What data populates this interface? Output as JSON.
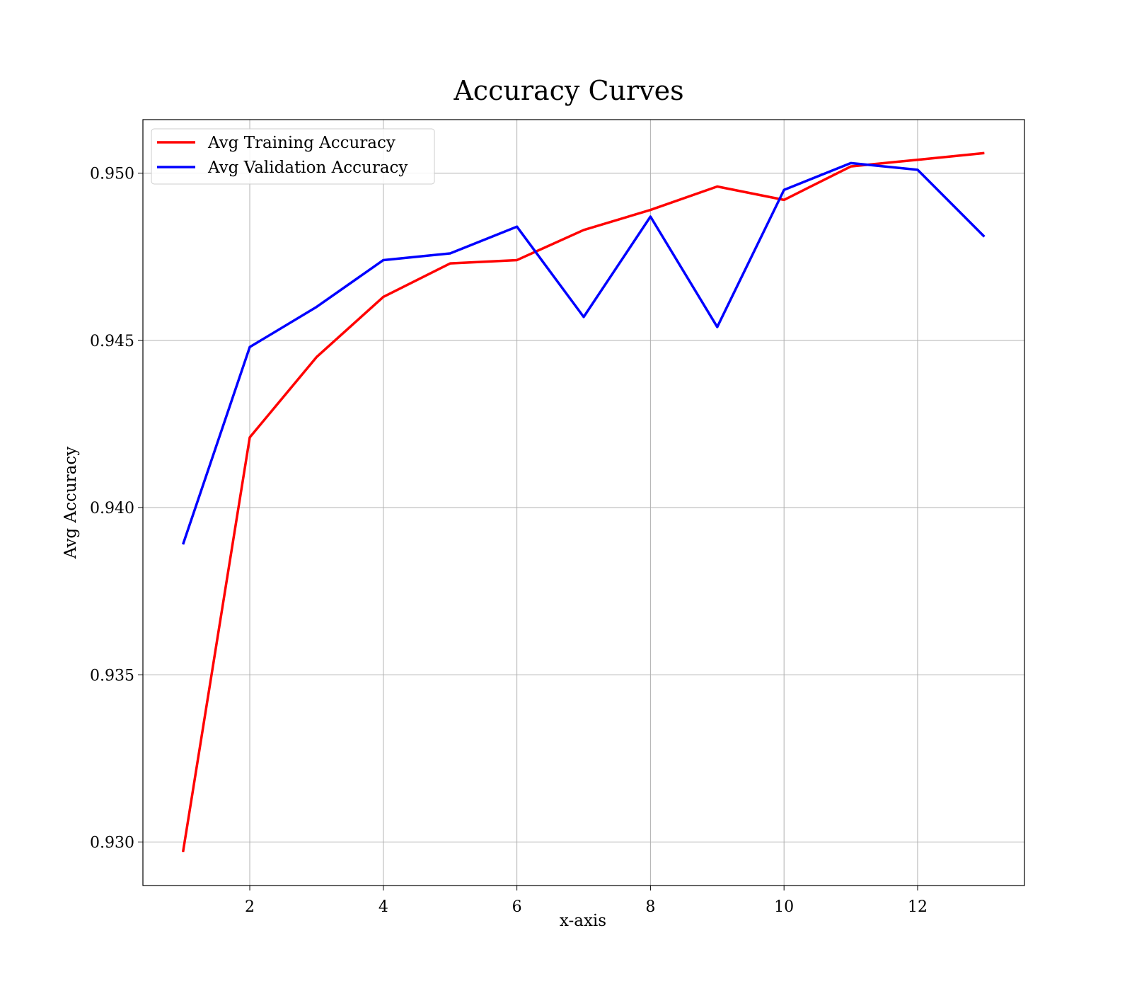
{
  "chart_data": {
    "type": "line",
    "title": "Accuracy Curves",
    "xlabel": "x-axis",
    "ylabel": "Avg Accuracy",
    "xlim": [
      0.4,
      13.6
    ],
    "ylim": [
      0.9287,
      0.9516
    ],
    "xticks": [
      2,
      4,
      6,
      8,
      10,
      12
    ],
    "xtick_labels": [
      "2",
      "4",
      "6",
      "8",
      "10",
      "12"
    ],
    "yticks": [
      0.93,
      0.935,
      0.94,
      0.945,
      0.95
    ],
    "ytick_labels": [
      "0.930",
      "0.935",
      "0.940",
      "0.945",
      "0.950"
    ],
    "grid": true,
    "legend_position": "top-left",
    "x": [
      1,
      2,
      3,
      4,
      5,
      6,
      7,
      8,
      9,
      10,
      11,
      12,
      13
    ],
    "series": [
      {
        "name": "Avg Training Accuracy",
        "color": "#ff0000",
        "values": [
          0.9297,
          0.9421,
          0.9445,
          0.9463,
          0.9473,
          0.9474,
          0.9483,
          0.9489,
          0.9496,
          0.9492,
          0.9502,
          0.9504,
          0.9506
        ]
      },
      {
        "name": "Avg Validation Accuracy",
        "color": "#0000ff",
        "values": [
          0.9389,
          0.9448,
          0.946,
          0.9474,
          0.9476,
          0.9484,
          0.9457,
          0.9487,
          0.9454,
          0.9495,
          0.9503,
          0.9501,
          0.9481
        ]
      }
    ]
  }
}
